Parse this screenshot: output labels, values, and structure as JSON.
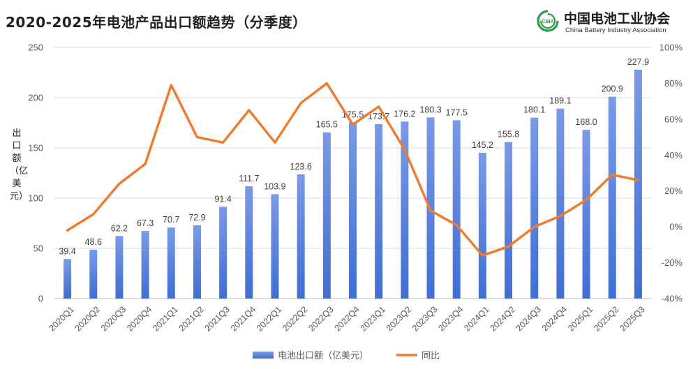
{
  "header": {
    "title": "2020-2025年电池产品出口额趋势（分季度）"
  },
  "logo": {
    "name_cn": "中国电池工业协会",
    "name_en": "China Battery Industry Association",
    "mark_text": "CBIA"
  },
  "colors": {
    "bar": "#3f6ed4",
    "bar_light": "#7a9ae6",
    "line": "#ed7d31",
    "grid": "#d9d9d9",
    "text": "#595959"
  },
  "chart_data": {
    "type": "bar",
    "categories": [
      "2020Q1",
      "2020Q2",
      "2020Q3",
      "2020Q4",
      "2021Q1",
      "2021Q2",
      "2021Q3",
      "2021Q4",
      "2022Q1",
      "2022Q2",
      "2022Q3",
      "2022Q4",
      "2023Q1",
      "2023Q2",
      "2023Q3",
      "2023Q4",
      "2024Q1",
      "2024Q2",
      "2024Q3",
      "2024Q4",
      "2025Q1",
      "2025Q2",
      "2025Q3"
    ],
    "series": [
      {
        "name": "电池出口额（亿美元）",
        "type": "bar",
        "axis": "left",
        "values": [
          39.4,
          48.6,
          62.2,
          67.3,
          70.7,
          72.9,
          91.4,
          111.7,
          103.9,
          123.6,
          165.5,
          175.5,
          173.7,
          176.2,
          180.3,
          177.5,
          145.2,
          155.8,
          180.1,
          189.1,
          168.0,
          200.9,
          227.9
        ],
        "labels": [
          "39.4",
          "48.6",
          "62.2",
          "67.3",
          "70.7",
          "72.9",
          "91.4",
          "111.7",
          "103.9",
          "123.6",
          "165.5",
          "175.5",
          "173.7",
          "176.2",
          "180.3",
          "177.5",
          "145.2",
          "155.8",
          "180.1",
          "189.1",
          "168.0",
          "200.9",
          "227.9"
        ]
      },
      {
        "name": "同比",
        "type": "line",
        "axis": "right",
        "values": [
          -2,
          7,
          24,
          35,
          79,
          50,
          47,
          65,
          47,
          69,
          80,
          57,
          67,
          43,
          9,
          1,
          -16,
          -11,
          0,
          6,
          15,
          29,
          26
        ]
      }
    ],
    "ylabel": "出口额（亿美元）",
    "ylim": [
      0,
      250
    ],
    "yticks": [
      0,
      50,
      100,
      150,
      200,
      250
    ],
    "ytick_labels": [
      "0",
      "50",
      "100",
      "150",
      "200",
      "250"
    ],
    "y2lim": [
      -40,
      100
    ],
    "y2ticks": [
      -40,
      -20,
      0,
      20,
      40,
      60,
      80,
      100
    ],
    "y2tick_labels": [
      "-40%",
      "-20%",
      "0%",
      "20%",
      "40%",
      "60%",
      "80%",
      "100%"
    ],
    "grid": true,
    "legend_position": "bottom-center"
  }
}
